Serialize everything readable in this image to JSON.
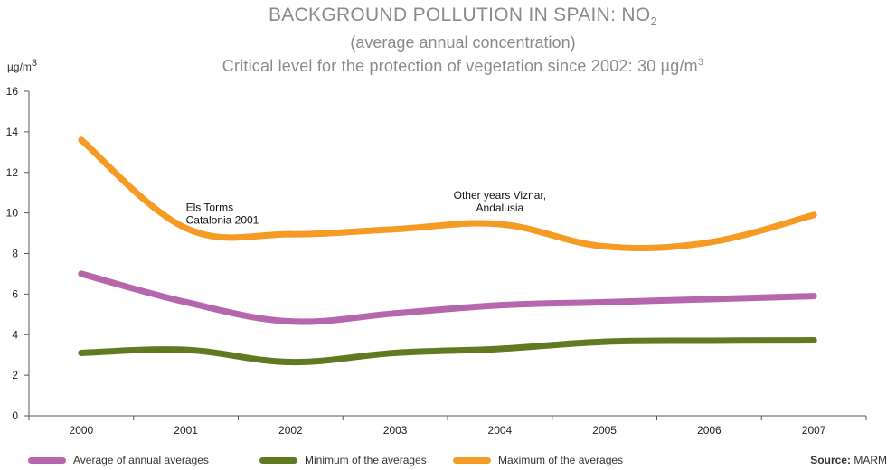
{
  "chart_data": {
    "type": "line",
    "title": "BACKGROUND POLLUTION IN SPAIN: NO",
    "title_subscript": "2",
    "subtitle": "(average annual concentration)",
    "subtitle2_prefix": "Critical level for the protection of vegetation since 2002: 30 µg/m",
    "subtitle2_sup": "3",
    "ylabel_prefix": "µg/m",
    "ylabel_sup": "3",
    "ylim": [
      0,
      16
    ],
    "yticks": [
      0,
      2,
      4,
      6,
      8,
      10,
      12,
      14,
      16
    ],
    "categories": [
      "2000",
      "2001",
      "2002",
      "2003",
      "2004",
      "2005",
      "2006",
      "2007"
    ],
    "series": [
      {
        "name": "Average of annual averages",
        "color": "#b566ad",
        "values": [
          7.0,
          5.6,
          4.65,
          5.05,
          5.45,
          5.6,
          5.75,
          5.9
        ]
      },
      {
        "name": "Minimum of the averages",
        "color": "#5f7a1f",
        "values": [
          3.1,
          3.25,
          2.65,
          3.1,
          3.3,
          3.65,
          3.7,
          3.72
        ]
      },
      {
        "name": "Maximum of the averages",
        "color": "#f59a23",
        "values": [
          13.6,
          9.25,
          8.95,
          9.2,
          9.45,
          8.35,
          8.55,
          9.9
        ]
      }
    ],
    "annotations": [
      {
        "lines": [
          "Els Torms",
          "Catalonia 2001"
        ],
        "x": "2001",
        "y": 10.1,
        "anchor": "start"
      },
      {
        "lines": [
          "Other years Viznar,",
          "Andalusia"
        ],
        "x": "2004",
        "y": 10.7,
        "anchor": "middle"
      }
    ],
    "grid": false,
    "legend_position": "bottom"
  },
  "source": {
    "label": "Source:",
    "value": "MARM"
  }
}
